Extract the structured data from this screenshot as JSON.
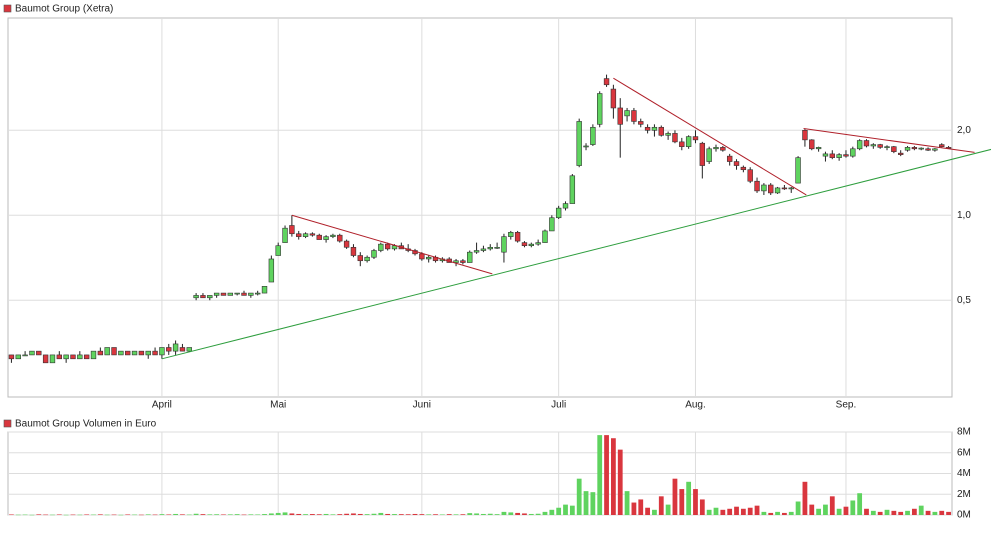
{
  "chart_data": {
    "type": "candlestick",
    "title": "Baumot Group (Xetra)",
    "volume_title": "Baumot Group Volumen in Euro",
    "log_scale": true,
    "grid": true,
    "up_color": "#5fd35f",
    "down_color": "#d9363e",
    "ylim": [
      0.227,
      5
    ],
    "yticks": [
      {
        "value": 0.5,
        "label": "0,5"
      },
      {
        "value": 1.0,
        "label": "1,0"
      },
      {
        "value": 2.0,
        "label": "2,0"
      }
    ],
    "volume_ylim": [
      0,
      8000000
    ],
    "volume_yticks": [
      {
        "value": 0,
        "label": "0M"
      },
      {
        "value": 2000000,
        "label": "2M"
      },
      {
        "value": 4000000,
        "label": "4M"
      },
      {
        "value": 6000000,
        "label": "6M"
      },
      {
        "value": 8000000,
        "label": "8M"
      }
    ],
    "categories": [
      null,
      null,
      null,
      null,
      null,
      null,
      null,
      null,
      null,
      null,
      null,
      null,
      null,
      null,
      null,
      null,
      null,
      null,
      null,
      null,
      null,
      null,
      "April",
      null,
      null,
      null,
      null,
      null,
      null,
      null,
      null,
      null,
      null,
      null,
      null,
      null,
      null,
      null,
      null,
      "Mai",
      null,
      null,
      null,
      null,
      null,
      null,
      null,
      null,
      null,
      null,
      null,
      null,
      null,
      null,
      null,
      null,
      null,
      null,
      null,
      null,
      "Juni",
      null,
      null,
      null,
      null,
      null,
      null,
      null,
      null,
      null,
      null,
      null,
      null,
      null,
      null,
      null,
      null,
      null,
      null,
      null,
      "Juli",
      null,
      null,
      null,
      null,
      null,
      null,
      null,
      null,
      null,
      null,
      null,
      null,
      null,
      null,
      null,
      null,
      null,
      null,
      null,
      "Aug.",
      null,
      null,
      null,
      null,
      null,
      null,
      null,
      null,
      null,
      null,
      null,
      null,
      null,
      null,
      null,
      null,
      null,
      null,
      null,
      null,
      null,
      "Sep.",
      null,
      null,
      null,
      null,
      null,
      null,
      null,
      null,
      null,
      null,
      null,
      null,
      null,
      null,
      null
    ],
    "open": [
      0.32,
      0.31,
      0.32,
      0.32,
      0.33,
      0.32,
      0.3,
      0.32,
      0.31,
      0.32,
      0.31,
      0.32,
      0.31,
      0.33,
      0.32,
      0.34,
      0.32,
      0.33,
      0.32,
      0.33,
      0.32,
      0.33,
      0.32,
      0.34,
      0.33,
      0.34,
      0.33,
      0.51,
      0.52,
      0.51,
      0.52,
      0.53,
      0.52,
      0.53,
      0.53,
      0.52,
      0.53,
      0.53,
      0.58,
      0.72,
      0.8,
      0.92,
      0.86,
      0.84,
      0.86,
      0.85,
      0.82,
      0.84,
      0.85,
      0.81,
      0.77,
      0.72,
      0.69,
      0.71,
      0.75,
      0.79,
      0.76,
      0.78,
      0.76,
      0.75,
      0.73,
      0.7,
      0.71,
      0.69,
      0.7,
      0.68,
      0.69,
      0.68,
      0.74,
      0.75,
      0.76,
      0.77,
      0.74,
      0.84,
      0.87,
      0.8,
      0.78,
      0.79,
      0.8,
      0.88,
      0.98,
      1.06,
      1.1,
      1.5,
      1.75,
      1.78,
      2.1,
      3.05,
      2.8,
      2.4,
      2.25,
      2.35,
      2.15,
      2.05,
      2.0,
      2.05,
      1.92,
      1.95,
      1.82,
      1.75,
      1.9,
      1.8,
      1.55,
      1.72,
      1.74,
      1.62,
      1.55,
      1.48,
      1.45,
      1.32,
      1.22,
      1.28,
      1.2,
      1.25,
      1.24,
      1.3,
      2.0,
      1.85,
      1.72,
      1.62,
      1.65,
      1.6,
      1.64,
      1.62,
      1.72,
      1.84,
      1.76,
      1.78,
      1.74,
      1.75,
      1.66,
      1.7,
      1.74,
      1.72,
      1.72,
      1.7,
      1.78,
      1.74
    ],
    "high": [
      0.32,
      0.32,
      0.33,
      0.33,
      0.33,
      0.32,
      0.32,
      0.33,
      0.32,
      0.32,
      0.33,
      0.32,
      0.33,
      0.34,
      0.34,
      0.34,
      0.33,
      0.33,
      0.33,
      0.33,
      0.33,
      0.34,
      0.34,
      0.35,
      0.36,
      0.35,
      0.34,
      0.53,
      0.53,
      0.52,
      0.53,
      0.53,
      0.53,
      0.53,
      0.54,
      0.53,
      0.54,
      0.56,
      0.72,
      0.8,
      0.92,
      1.0,
      0.88,
      0.87,
      0.87,
      0.86,
      0.85,
      0.86,
      0.86,
      0.82,
      0.79,
      0.74,
      0.72,
      0.76,
      0.8,
      0.8,
      0.79,
      0.8,
      0.79,
      0.76,
      0.74,
      0.72,
      0.72,
      0.71,
      0.71,
      0.7,
      0.7,
      0.75,
      0.8,
      0.78,
      0.79,
      0.8,
      0.86,
      0.88,
      0.88,
      0.81,
      0.8,
      0.82,
      0.89,
      1.0,
      1.08,
      1.12,
      1.4,
      2.2,
      1.8,
      2.1,
      2.75,
      3.15,
      2.9,
      2.6,
      2.4,
      2.4,
      2.2,
      2.1,
      2.1,
      2.08,
      1.98,
      2.0,
      1.88,
      1.92,
      2.0,
      1.82,
      1.75,
      1.78,
      1.76,
      1.65,
      1.58,
      1.5,
      1.48,
      1.36,
      1.3,
      1.3,
      1.26,
      1.28,
      1.26,
      1.62,
      2.02,
      1.86,
      1.75,
      1.68,
      1.7,
      1.66,
      1.7,
      1.75,
      1.86,
      1.86,
      1.8,
      1.79,
      1.77,
      1.76,
      1.7,
      1.76,
      1.76,
      1.74,
      1.74,
      1.73,
      1.8,
      1.76
    ],
    "low": [
      0.3,
      0.31,
      0.32,
      0.32,
      0.32,
      0.3,
      0.3,
      0.31,
      0.3,
      0.31,
      0.31,
      0.31,
      0.31,
      0.32,
      0.32,
      0.32,
      0.32,
      0.32,
      0.32,
      0.32,
      0.31,
      0.32,
      0.31,
      0.32,
      0.32,
      0.33,
      0.33,
      0.5,
      0.51,
      0.5,
      0.51,
      0.52,
      0.52,
      0.52,
      0.52,
      0.51,
      0.52,
      0.53,
      0.58,
      0.72,
      0.8,
      0.84,
      0.82,
      0.83,
      0.84,
      0.82,
      0.8,
      0.83,
      0.8,
      0.76,
      0.71,
      0.66,
      0.68,
      0.7,
      0.74,
      0.75,
      0.75,
      0.76,
      0.74,
      0.72,
      0.69,
      0.68,
      0.68,
      0.68,
      0.68,
      0.66,
      0.67,
      0.68,
      0.73,
      0.74,
      0.75,
      0.76,
      0.68,
      0.82,
      0.8,
      0.77,
      0.77,
      0.78,
      0.8,
      0.88,
      0.97,
      1.04,
      1.1,
      1.48,
      1.7,
      1.76,
      2.05,
      2.85,
      2.2,
      1.6,
      2.15,
      2.1,
      2.05,
      1.95,
      1.9,
      1.9,
      1.85,
      1.8,
      1.7,
      1.72,
      1.8,
      1.35,
      1.52,
      1.68,
      1.68,
      1.5,
      1.45,
      1.42,
      1.3,
      1.2,
      1.18,
      1.18,
      1.19,
      1.23,
      1.2,
      1.3,
      1.75,
      1.7,
      1.68,
      1.55,
      1.58,
      1.56,
      1.6,
      1.6,
      1.7,
      1.74,
      1.72,
      1.72,
      1.7,
      1.66,
      1.62,
      1.68,
      1.7,
      1.7,
      1.69,
      1.68,
      1.74,
      1.72
    ],
    "close": [
      0.31,
      0.32,
      0.32,
      0.33,
      0.32,
      0.3,
      0.32,
      0.31,
      0.32,
      0.31,
      0.32,
      0.31,
      0.33,
      0.32,
      0.34,
      0.32,
      0.33,
      0.32,
      0.33,
      0.32,
      0.33,
      0.32,
      0.34,
      0.33,
      0.35,
      0.33,
      0.34,
      0.52,
      0.51,
      0.52,
      0.53,
      0.52,
      0.53,
      0.53,
      0.52,
      0.53,
      0.53,
      0.56,
      0.7,
      0.78,
      0.9,
      0.86,
      0.84,
      0.86,
      0.85,
      0.82,
      0.84,
      0.85,
      0.81,
      0.77,
      0.72,
      0.69,
      0.71,
      0.75,
      0.79,
      0.76,
      0.78,
      0.76,
      0.75,
      0.73,
      0.7,
      0.71,
      0.69,
      0.7,
      0.68,
      0.69,
      0.68,
      0.74,
      0.75,
      0.76,
      0.77,
      0.77,
      0.84,
      0.87,
      0.81,
      0.78,
      0.79,
      0.8,
      0.88,
      0.98,
      1.06,
      1.1,
      1.38,
      2.15,
      1.76,
      2.05,
      2.7,
      2.9,
      2.4,
      2.1,
      2.35,
      2.15,
      2.1,
      2.0,
      2.05,
      1.92,
      1.95,
      1.82,
      1.75,
      1.9,
      1.85,
      1.5,
      1.72,
      1.74,
      1.7,
      1.55,
      1.5,
      1.45,
      1.32,
      1.22,
      1.28,
      1.2,
      1.25,
      1.24,
      1.25,
      1.6,
      1.85,
      1.72,
      1.74,
      1.65,
      1.6,
      1.64,
      1.62,
      1.72,
      1.84,
      1.76,
      1.78,
      1.74,
      1.75,
      1.68,
      1.64,
      1.74,
      1.72,
      1.73,
      1.7,
      1.72,
      1.75,
      1.73
    ],
    "volume": [
      50000,
      30000,
      40000,
      20000,
      60000,
      40000,
      30000,
      50000,
      20000,
      40000,
      30000,
      50000,
      40000,
      60000,
      30000,
      40000,
      20000,
      50000,
      40000,
      30000,
      60000,
      40000,
      80000,
      50000,
      100000,
      60000,
      40000,
      120000,
      80000,
      60000,
      70000,
      50000,
      60000,
      80000,
      40000,
      60000,
      50000,
      90000,
      150000,
      200000,
      250000,
      150000,
      100000,
      80000,
      90000,
      70000,
      100000,
      60000,
      80000,
      120000,
      150000,
      100000,
      80000,
      120000,
      200000,
      100000,
      90000,
      80000,
      70000,
      100000,
      80000,
      60000,
      70000,
      50000,
      80000,
      60000,
      70000,
      180000,
      150000,
      100000,
      120000,
      80000,
      300000,
      250000,
      200000,
      150000,
      100000,
      120000,
      300000,
      500000,
      700000,
      1000000,
      900000,
      3500000,
      2300000,
      2200000,
      7700000,
      7700000,
      7400000,
      6300000,
      2300000,
      1200000,
      1500000,
      700000,
      500000,
      1800000,
      1000000,
      3500000,
      2500000,
      3200000,
      2500000,
      1500000,
      500000,
      700000,
      500000,
      600000,
      800000,
      600000,
      700000,
      900000,
      300000,
      200000,
      300000,
      200000,
      300000,
      1300000,
      3200000,
      1000000,
      600000,
      1000000,
      1800000,
      600000,
      800000,
      1400000,
      2100000,
      600000,
      400000,
      300000,
      500000,
      400000,
      300000,
      400000,
      600000,
      900000,
      400000,
      300000,
      400000,
      300000
    ],
    "trendlines": [
      {
        "color": "#2e9e3e",
        "x": [
          22,
          144.4
        ],
        "values": [
          0.31,
          1.74
        ]
      },
      {
        "color": "#b0202a",
        "x": [
          41,
          70.3
        ],
        "values": [
          1.0,
          0.62
        ]
      },
      {
        "color": "#b0202a",
        "x": [
          88,
          116.2
        ],
        "values": [
          3.06,
          1.18
        ]
      },
      {
        "color": "#b0202a",
        "x": [
          115.8,
          140.8
        ],
        "values": [
          2.03,
          1.67
        ]
      }
    ]
  }
}
